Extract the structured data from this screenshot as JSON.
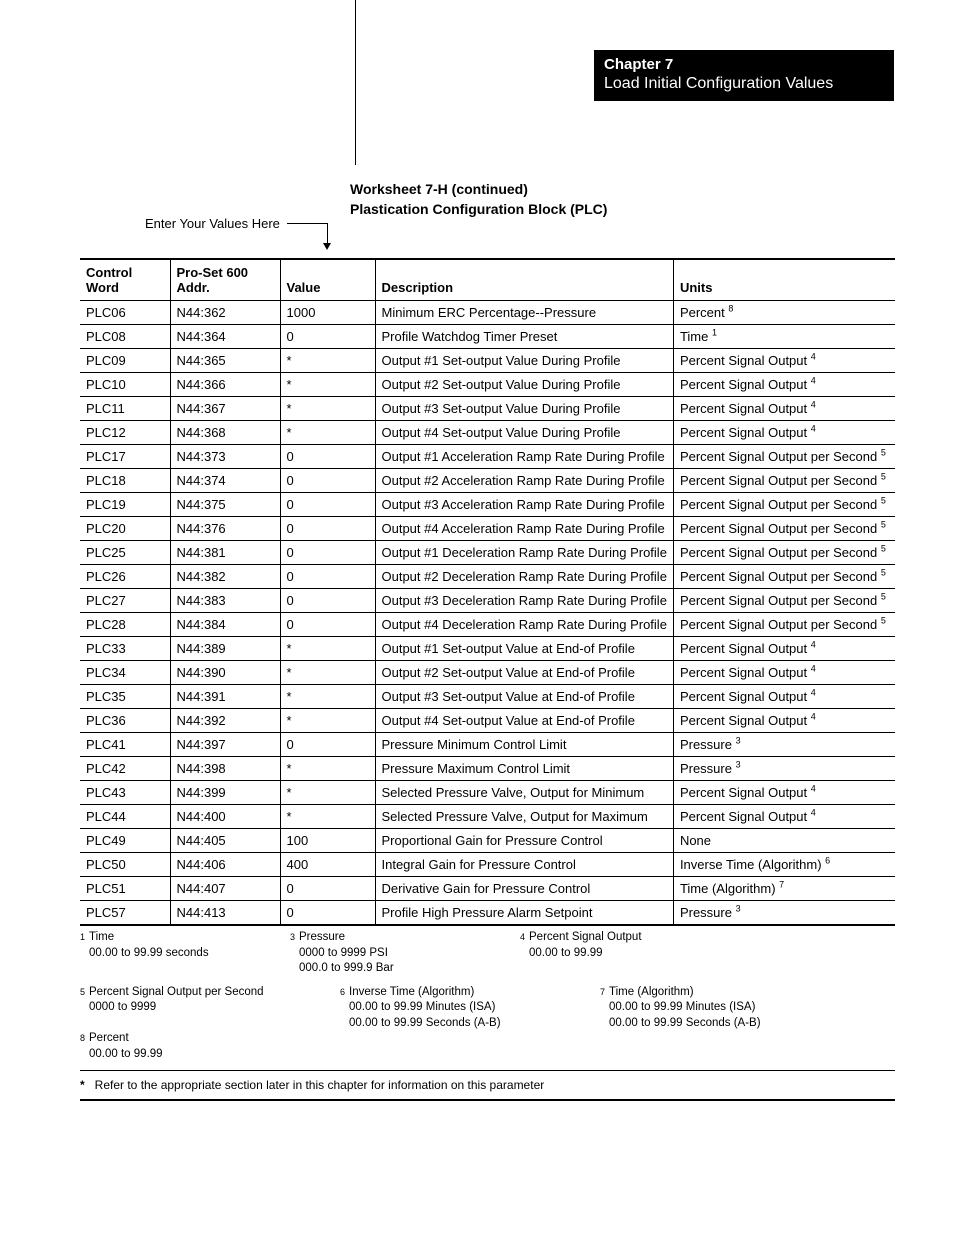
{
  "chapter": {
    "line1": "Chapter 7",
    "line2": "Load Initial Configuration Values"
  },
  "worksheet": {
    "title1": "Worksheet 7-H (continued)",
    "title2": "Plastication Configuration Block (PLC)"
  },
  "enter_label": "Enter Your Values Here",
  "table": {
    "headers": {
      "cw": "Control Word",
      "addr": "Pro-Set 600 Addr.",
      "val": "Value",
      "desc": "Description",
      "units": "Units"
    },
    "rows": [
      {
        "cw": "PLC06",
        "addr": "N44:362",
        "val": "1000",
        "desc": "Minimum ERC Percentage--Pressure",
        "unit": "Percent",
        "sup": "8"
      },
      {
        "cw": "PLC08",
        "addr": "N44:364",
        "val": "0",
        "desc": "Profile Watchdog Timer Preset",
        "unit": "Time",
        "sup": "1"
      },
      {
        "cw": "PLC09",
        "addr": "N44:365",
        "val": "*",
        "desc": "Output #1 Set-output Value During Profile",
        "unit": "Percent Signal Output",
        "sup": "4"
      },
      {
        "cw": "PLC10",
        "addr": "N44:366",
        "val": "*",
        "desc": "Output #2 Set-output Value During Profile",
        "unit": "Percent Signal Output",
        "sup": "4"
      },
      {
        "cw": "PLC11",
        "addr": "N44:367",
        "val": "*",
        "desc": "Output #3 Set-output Value During Profile",
        "unit": "Percent Signal Output",
        "sup": "4"
      },
      {
        "cw": "PLC12",
        "addr": "N44:368",
        "val": "*",
        "desc": "Output #4 Set-output Value During Profile",
        "unit": "Percent Signal Output",
        "sup": "4"
      },
      {
        "cw": "PLC17",
        "addr": "N44:373",
        "val": "0",
        "desc": "Output #1 Acceleration Ramp Rate During Profile",
        "unit": "Percent Signal Output per Second",
        "sup": "5"
      },
      {
        "cw": "PLC18",
        "addr": "N44:374",
        "val": "0",
        "desc": "Output #2 Acceleration Ramp Rate During Profile",
        "unit": "Percent Signal Output per Second",
        "sup": "5"
      },
      {
        "cw": "PLC19",
        "addr": "N44:375",
        "val": "0",
        "desc": "Output #3 Acceleration Ramp Rate During Profile",
        "unit": "Percent Signal Output per Second",
        "sup": "5"
      },
      {
        "cw": "PLC20",
        "addr": "N44:376",
        "val": "0",
        "desc": "Output #4 Acceleration Ramp Rate During Profile",
        "unit": "Percent Signal Output per Second",
        "sup": "5"
      },
      {
        "cw": "PLC25",
        "addr": "N44:381",
        "val": "0",
        "desc": "Output #1 Deceleration Ramp Rate During Profile",
        "unit": "Percent Signal Output per Second",
        "sup": "5"
      },
      {
        "cw": "PLC26",
        "addr": "N44:382",
        "val": "0",
        "desc": "Output #2 Deceleration Ramp Rate During Profile",
        "unit": "Percent Signal Output per Second",
        "sup": "5"
      },
      {
        "cw": "PLC27",
        "addr": "N44:383",
        "val": "0",
        "desc": "Output #3 Deceleration Ramp Rate During Profile",
        "unit": "Percent Signal Output per Second",
        "sup": "5"
      },
      {
        "cw": "PLC28",
        "addr": "N44:384",
        "val": "0",
        "desc": "Output #4 Deceleration Ramp Rate During Profile",
        "unit": "Percent Signal Output per Second",
        "sup": "5"
      },
      {
        "cw": "PLC33",
        "addr": "N44:389",
        "val": "*",
        "desc": "Output #1 Set-output Value at End-of Profile",
        "unit": "Percent Signal Output",
        "sup": "4"
      },
      {
        "cw": "PLC34",
        "addr": "N44:390",
        "val": "*",
        "desc": "Output #2 Set-output Value at End-of Profile",
        "unit": "Percent Signal Output",
        "sup": "4"
      },
      {
        "cw": "PLC35",
        "addr": "N44:391",
        "val": "*",
        "desc": "Output #3 Set-output Value at End-of Profile",
        "unit": "Percent Signal Output",
        "sup": "4"
      },
      {
        "cw": "PLC36",
        "addr": "N44:392",
        "val": "*",
        "desc": "Output #4 Set-output Value at End-of Profile",
        "unit": "Percent Signal Output",
        "sup": "4"
      },
      {
        "cw": "PLC41",
        "addr": "N44:397",
        "val": "0",
        "desc": "Pressure Minimum Control Limit",
        "unit": "Pressure",
        "sup": "3"
      },
      {
        "cw": "PLC42",
        "addr": "N44:398",
        "val": "*",
        "desc": "Pressure Maximum Control Limit",
        "unit": "Pressure",
        "sup": "3"
      },
      {
        "cw": "PLC43",
        "addr": "N44:399",
        "val": "*",
        "desc": "Selected Pressure Valve, Output for Minimum",
        "unit": "Percent Signal Output",
        "sup": "4"
      },
      {
        "cw": "PLC44",
        "addr": "N44:400",
        "val": "*",
        "desc": "Selected Pressure Valve, Output for Maximum",
        "unit": "Percent Signal Output",
        "sup": "4"
      },
      {
        "cw": "PLC49",
        "addr": "N44:405",
        "val": "100",
        "desc": "Proportional Gain for Pressure Control",
        "unit": "None",
        "sup": ""
      },
      {
        "cw": "PLC50",
        "addr": "N44:406",
        "val": "400",
        "desc": "Integral Gain for Pressure Control",
        "unit": "Inverse Time (Algorithm)",
        "sup": "6"
      },
      {
        "cw": "PLC51",
        "addr": "N44:407",
        "val": "0",
        "desc": "Derivative Gain for Pressure Control",
        "unit": "Time (Algorithm)",
        "sup": "7"
      },
      {
        "cw": "PLC57",
        "addr": "N44:413",
        "val": "0",
        "desc": "Profile High Pressure Alarm Setpoint",
        "unit": "Pressure",
        "sup": "3"
      }
    ]
  },
  "footnotes": {
    "row1": [
      {
        "n": "1",
        "t": "Time",
        "r": [
          "00.00 to 99.99 seconds"
        ]
      },
      {
        "n": "3",
        "t": "Pressure",
        "r": [
          "0000 to 9999 PSI",
          "000.0 to 999.9 Bar"
        ]
      },
      {
        "n": "4",
        "t": "Percent Signal Output",
        "r": [
          "00.00 to 99.99"
        ]
      }
    ],
    "row2": [
      {
        "n": "5",
        "t": "Percent Signal Output per Second",
        "r": [
          "0000 to 9999"
        ]
      },
      {
        "n": "6",
        "t": "Inverse Time (Algorithm)",
        "r": [
          "00.00 to 99.99 Minutes  (ISA)",
          "00.00 to 99.99 Seconds  (A-B)"
        ]
      },
      {
        "n": "7",
        "t": "Time (Algorithm)",
        "r": [
          "00.00 to 99.99 Minutes  (ISA)",
          "00.00 to 99.99 Seconds  (A-B)"
        ]
      },
      {
        "n": "8",
        "t": "Percent",
        "r": [
          "00.00 to 99.99"
        ]
      }
    ],
    "star": "Refer to the appropriate section later in this chapter for information on this parameter"
  }
}
